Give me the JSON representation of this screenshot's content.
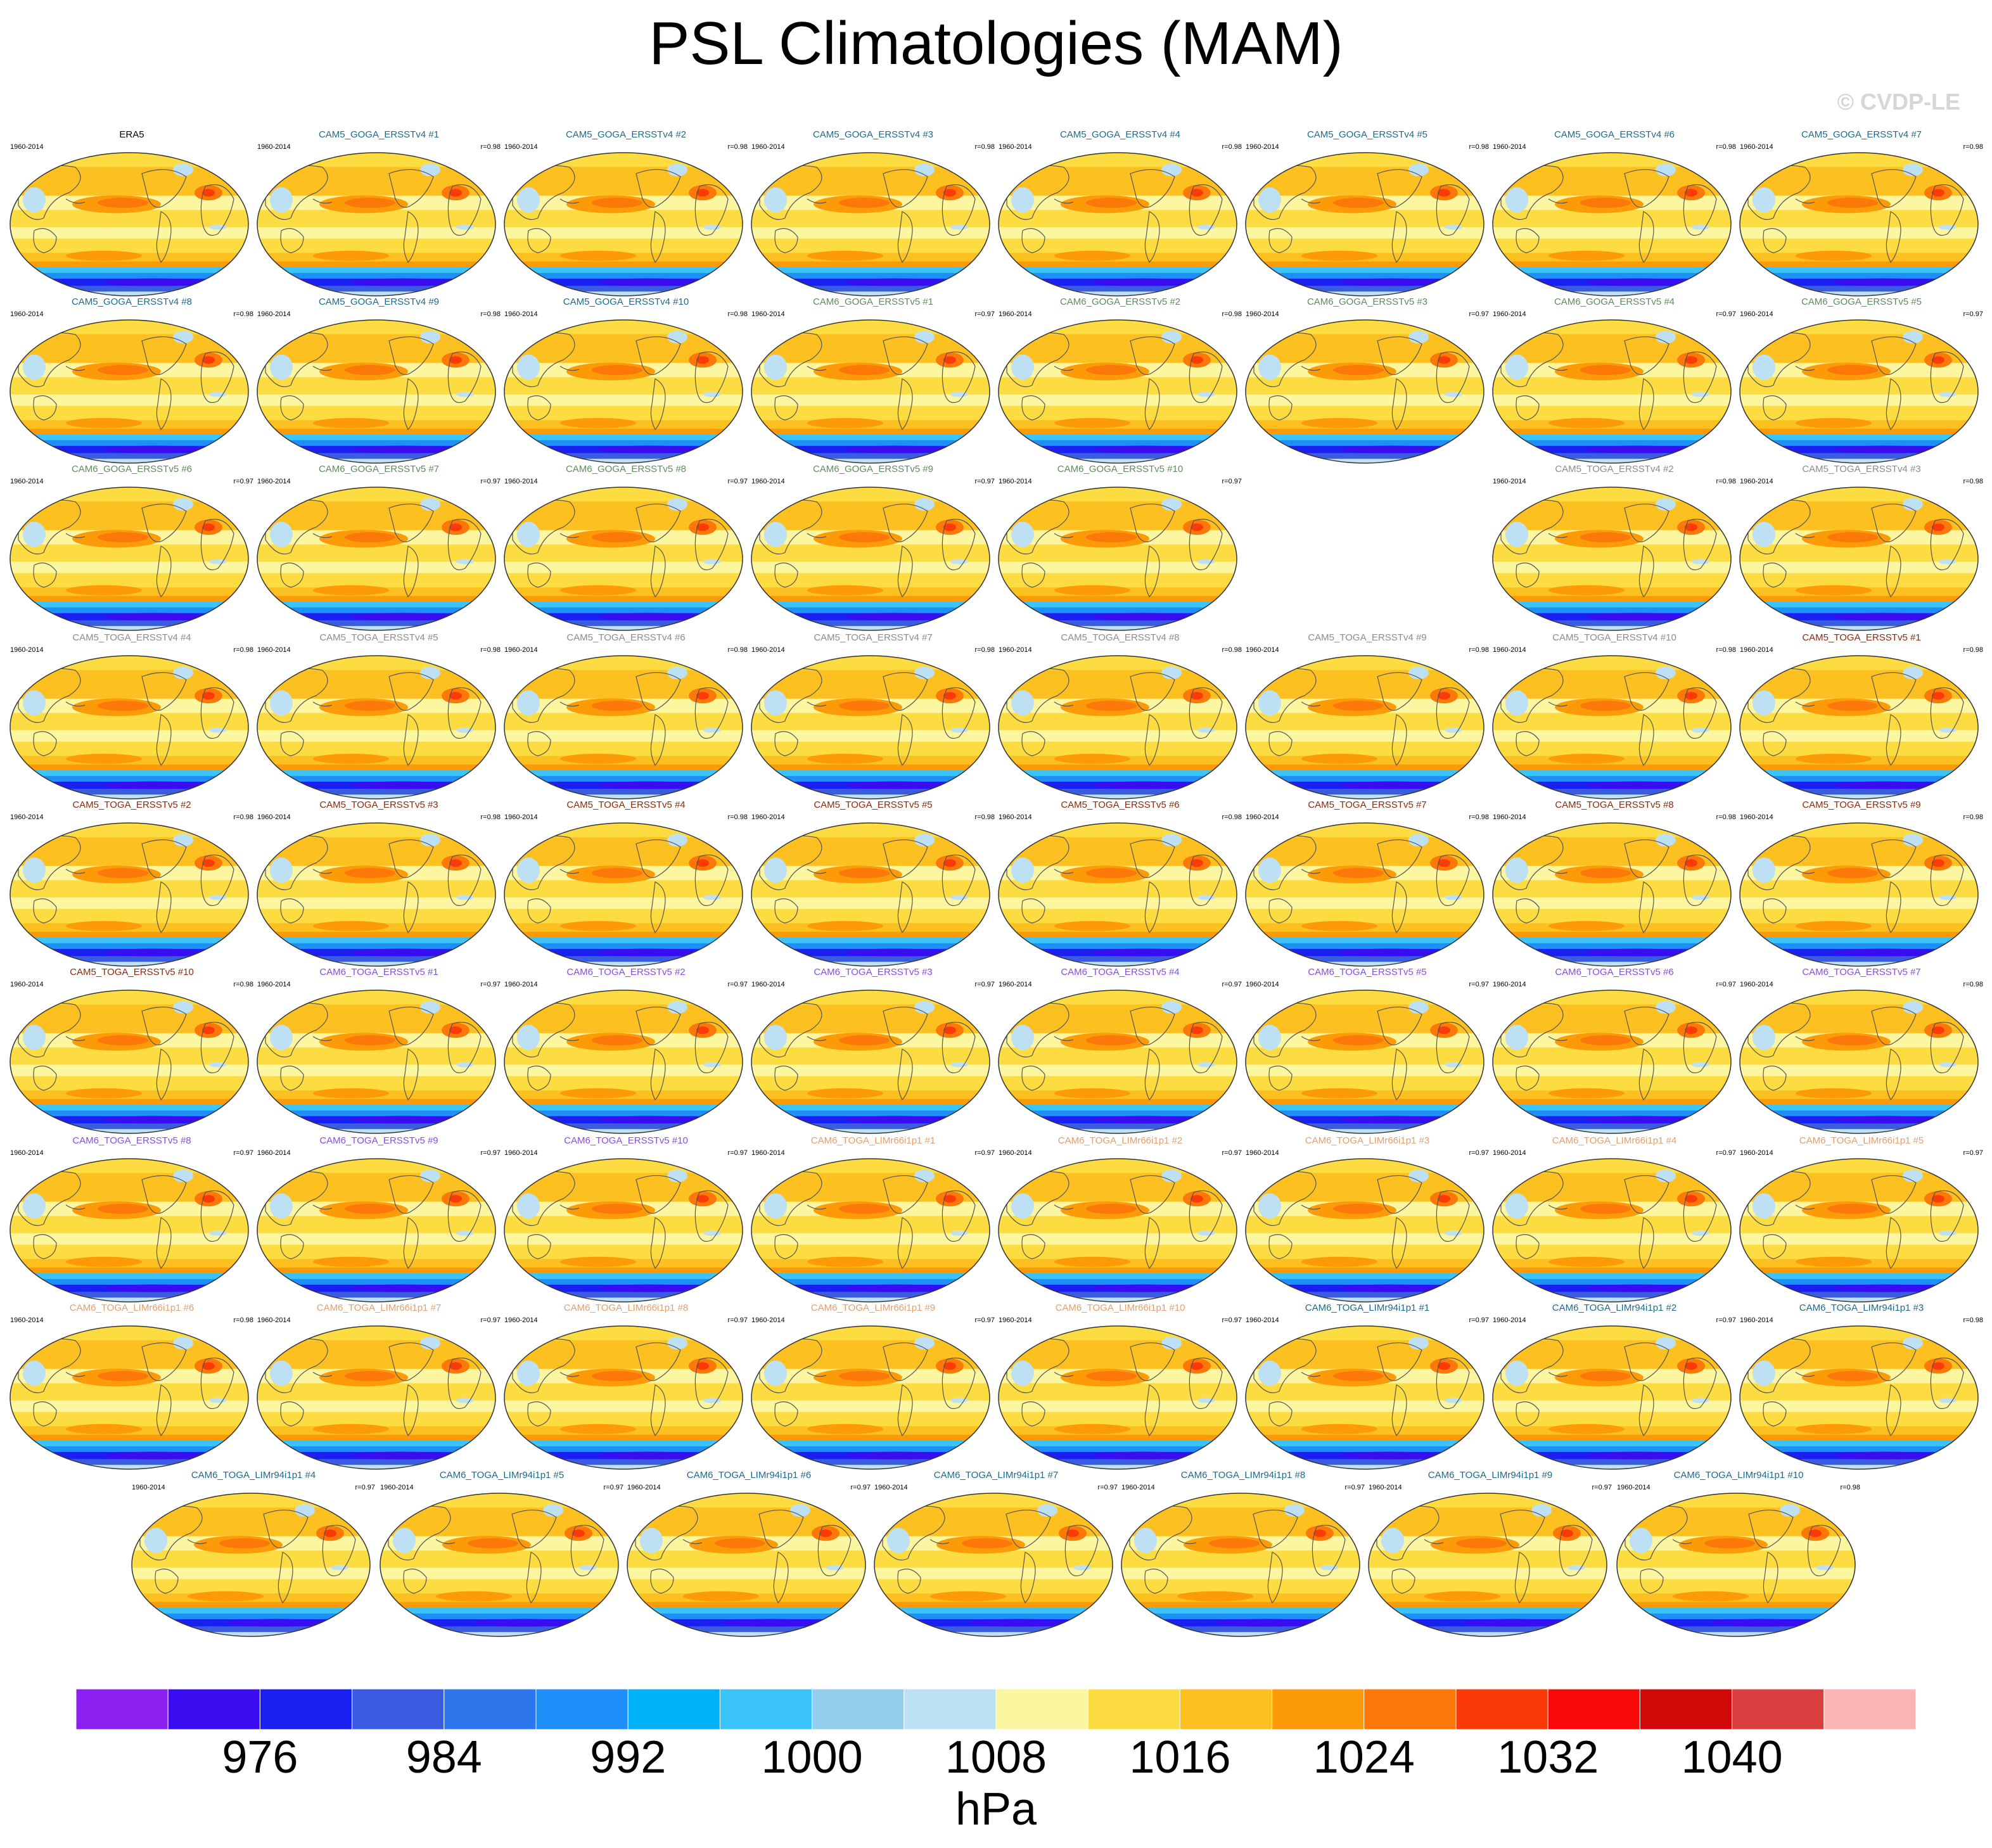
{
  "title": "PSL Climatologies (MAM)",
  "watermark": "© CVDP-LE",
  "colorbar": {
    "unit": "hPa",
    "tick_labels": [
      "976",
      "984",
      "992",
      "1000",
      "1008",
      "1016",
      "1024",
      "1032",
      "1040"
    ],
    "colors": [
      "#8B20F0",
      "#3A0CF0",
      "#1A20F0",
      "#3A5CE0",
      "#2E76EC",
      "#1E8EF8",
      "#00B0F8",
      "#3CC4F8",
      "#92CEEC",
      "#BEE0F4",
      "#FCF6A0",
      "#FCDC40",
      "#FCC020",
      "#FC9A08",
      "#FC7808",
      "#FC3A08",
      "#F80808",
      "#D00808",
      "#D83E3E",
      "#FCB4B4"
    ]
  },
  "chart_data": {
    "type": "heatmap",
    "variable": "PSL",
    "season": "MAM",
    "units": "hPa",
    "levels": [
      972,
      976,
      980,
      984,
      988,
      992,
      996,
      1000,
      1004,
      1008,
      1012,
      1016,
      1020,
      1024,
      1028,
      1032,
      1036,
      1040,
      1044
    ],
    "panels": [
      {
        "title": "ERA5",
        "years": "1960-2014",
        "r": "",
        "color": "#000000"
      },
      {
        "title": "CAM5_GOGA_ERSSTv4 #1",
        "years": "1960-2014",
        "r": "r=0.98",
        "color": "#1E6A8C"
      },
      {
        "title": "CAM5_GOGA_ERSSTv4 #2",
        "years": "1960-2014",
        "r": "r=0.98",
        "color": "#1E6A8C"
      },
      {
        "title": "CAM5_GOGA_ERSSTv4 #3",
        "years": "1960-2014",
        "r": "r=0.98",
        "color": "#1E6A8C"
      },
      {
        "title": "CAM5_GOGA_ERSSTv4 #4",
        "years": "1960-2014",
        "r": "r=0.98",
        "color": "#1E6A8C"
      },
      {
        "title": "CAM5_GOGA_ERSSTv4 #5",
        "years": "1960-2014",
        "r": "r=0.98",
        "color": "#1E6A8C"
      },
      {
        "title": "CAM5_GOGA_ERSSTv4 #6",
        "years": "1960-2014",
        "r": "r=0.98",
        "color": "#1E6A8C"
      },
      {
        "title": "CAM5_GOGA_ERSSTv4 #7",
        "years": "1960-2014",
        "r": "r=0.98",
        "color": "#1E6A8C"
      },
      {
        "title": "CAM5_GOGA_ERSSTv4 #8",
        "years": "1960-2014",
        "r": "r=0.98",
        "color": "#1E6A8C"
      },
      {
        "title": "CAM5_GOGA_ERSSTv4 #9",
        "years": "1960-2014",
        "r": "r=0.98",
        "color": "#1E6A8C"
      },
      {
        "title": "CAM5_GOGA_ERSSTv4 #10",
        "years": "1960-2014",
        "r": "r=0.98",
        "color": "#1E6A8C"
      },
      {
        "title": "CAM6_GOGA_ERSSTv5 #1",
        "years": "1960-2014",
        "r": "r=0.97",
        "color": "#5E8C5E"
      },
      {
        "title": "CAM6_GOGA_ERSSTv5 #2",
        "years": "1960-2014",
        "r": "r=0.98",
        "color": "#5E8C5E"
      },
      {
        "title": "CAM6_GOGA_ERSSTv5 #3",
        "years": "1960-2014",
        "r": "r=0.97",
        "color": "#5E8C5E"
      },
      {
        "title": "CAM6_GOGA_ERSSTv5 #4",
        "years": "1960-2014",
        "r": "r=0.97",
        "color": "#5E8C5E"
      },
      {
        "title": "CAM6_GOGA_ERSSTv5 #5",
        "years": "1960-2014",
        "r": "r=0.97",
        "color": "#5E8C5E"
      },
      {
        "title": "CAM6_GOGA_ERSSTv5 #6",
        "years": "1960-2014",
        "r": "r=0.97",
        "color": "#5E8C5E"
      },
      {
        "title": "CAM6_GOGA_ERSSTv5 #7",
        "years": "1960-2014",
        "r": "r=0.97",
        "color": "#5E8C5E"
      },
      {
        "title": "CAM6_GOGA_ERSSTv5 #8",
        "years": "1960-2014",
        "r": "r=0.97",
        "color": "#5E8C5E"
      },
      {
        "title": "CAM6_GOGA_ERSSTv5 #9",
        "years": "1960-2014",
        "r": "r=0.97",
        "color": "#5E8C5E"
      },
      {
        "title": "CAM6_GOGA_ERSSTv5 #10",
        "years": "1960-2014",
        "r": "r=0.97",
        "color": "#5E8C5E"
      },
      {
        "title": "CAM5_TOGA_ERSSTv4 #2",
        "years": "1960-2014",
        "r": "r=0.98",
        "color": "#8C8C8C"
      },
      {
        "title": "CAM5_TOGA_ERSSTv4 #3",
        "years": "1960-2014",
        "r": "r=0.98",
        "color": "#8C8C8C"
      },
      {
        "title": "CAM5_TOGA_ERSSTv4 #4",
        "years": "1960-2014",
        "r": "r=0.98",
        "color": "#8C8C8C"
      },
      {
        "title": "CAM5_TOGA_ERSSTv4 #5",
        "years": "1960-2014",
        "r": "r=0.98",
        "color": "#8C8C8C"
      },
      {
        "title": "CAM5_TOGA_ERSSTv4 #6",
        "years": "1960-2014",
        "r": "r=0.98",
        "color": "#8C8C8C"
      },
      {
        "title": "CAM5_TOGA_ERSSTv4 #7",
        "years": "1960-2014",
        "r": "r=0.98",
        "color": "#8C8C8C"
      },
      {
        "title": "CAM5_TOGA_ERSSTv4 #8",
        "years": "1960-2014",
        "r": "r=0.98",
        "color": "#8C8C8C"
      },
      {
        "title": "CAM5_TOGA_ERSSTv4 #9",
        "years": "1960-2014",
        "r": "r=0.98",
        "color": "#8C8C8C"
      },
      {
        "title": "CAM5_TOGA_ERSSTv4 #10",
        "years": "1960-2014",
        "r": "r=0.98",
        "color": "#8C8C8C"
      },
      {
        "title": "CAM5_TOGA_ERSSTv5 #1",
        "years": "1960-2014",
        "r": "r=0.98",
        "color": "#8C2A0A"
      },
      {
        "title": "CAM5_TOGA_ERSSTv5 #2",
        "years": "1960-2014",
        "r": "r=0.98",
        "color": "#8C2A0A"
      },
      {
        "title": "CAM5_TOGA_ERSSTv5 #3",
        "years": "1960-2014",
        "r": "r=0.98",
        "color": "#8C2A0A"
      },
      {
        "title": "CAM5_TOGA_ERSSTv5 #4",
        "years": "1960-2014",
        "r": "r=0.98",
        "color": "#8C2A0A"
      },
      {
        "title": "CAM5_TOGA_ERSSTv5 #5",
        "years": "1960-2014",
        "r": "r=0.98",
        "color": "#8C2A0A"
      },
      {
        "title": "CAM5_TOGA_ERSSTv5 #6",
        "years": "1960-2014",
        "r": "r=0.98",
        "color": "#8C2A0A"
      },
      {
        "title": "CAM5_TOGA_ERSSTv5 #7",
        "years": "1960-2014",
        "r": "r=0.98",
        "color": "#8C2A0A"
      },
      {
        "title": "CAM5_TOGA_ERSSTv5 #8",
        "years": "1960-2014",
        "r": "r=0.98",
        "color": "#8C2A0A"
      },
      {
        "title": "CAM5_TOGA_ERSSTv5 #9",
        "years": "1960-2014",
        "r": "r=0.98",
        "color": "#8C2A0A"
      },
      {
        "title": "CAM5_TOGA_ERSSTv5 #10",
        "years": "1960-2014",
        "r": "r=0.98",
        "color": "#8C2A0A"
      },
      {
        "title": "CAM6_TOGA_ERSSTv5 #1",
        "years": "1960-2014",
        "r": "r=0.97",
        "color": "#8A4CE6"
      },
      {
        "title": "CAM6_TOGA_ERSSTv5 #2",
        "years": "1960-2014",
        "r": "r=0.97",
        "color": "#8A4CE6"
      },
      {
        "title": "CAM6_TOGA_ERSSTv5 #3",
        "years": "1960-2014",
        "r": "r=0.97",
        "color": "#8A4CE6"
      },
      {
        "title": "CAM6_TOGA_ERSSTv5 #4",
        "years": "1960-2014",
        "r": "r=0.97",
        "color": "#8A4CE6"
      },
      {
        "title": "CAM6_TOGA_ERSSTv5 #5",
        "years": "1960-2014",
        "r": "r=0.97",
        "color": "#8A4CE6"
      },
      {
        "title": "CAM6_TOGA_ERSSTv5 #6",
        "years": "1960-2014",
        "r": "r=0.97",
        "color": "#8A4CE6"
      },
      {
        "title": "CAM6_TOGA_ERSSTv5 #7",
        "years": "1960-2014",
        "r": "r=0.98",
        "color": "#8A4CE6"
      },
      {
        "title": "CAM6_TOGA_ERSSTv5 #8",
        "years": "1960-2014",
        "r": "r=0.97",
        "color": "#8A4CE6"
      },
      {
        "title": "CAM6_TOGA_ERSSTv5 #9",
        "years": "1960-2014",
        "r": "r=0.97",
        "color": "#8A4CE6"
      },
      {
        "title": "CAM6_TOGA_ERSSTv5 #10",
        "years": "1960-2014",
        "r": "r=0.97",
        "color": "#8A4CE6"
      },
      {
        "title": "CAM6_TOGA_LIMr66i1p1 #1",
        "years": "1960-2014",
        "r": "r=0.97",
        "color": "#E0A070"
      },
      {
        "title": "CAM6_TOGA_LIMr66i1p1 #2",
        "years": "1960-2014",
        "r": "r=0.97",
        "color": "#E0A070"
      },
      {
        "title": "CAM6_TOGA_LIMr66i1p1 #3",
        "years": "1960-2014",
        "r": "r=0.97",
        "color": "#E0A070"
      },
      {
        "title": "CAM6_TOGA_LIMr66i1p1 #4",
        "years": "1960-2014",
        "r": "r=0.97",
        "color": "#E0A070"
      },
      {
        "title": "CAM6_TOGA_LIMr66i1p1 #5",
        "years": "1960-2014",
        "r": "r=0.97",
        "color": "#E0A070"
      },
      {
        "title": "CAM6_TOGA_LIMr66i1p1 #6",
        "years": "1960-2014",
        "r": "r=0.98",
        "color": "#E0A070"
      },
      {
        "title": "CAM6_TOGA_LIMr66i1p1 #7",
        "years": "1960-2014",
        "r": "r=0.97",
        "color": "#E0A070"
      },
      {
        "title": "CAM6_TOGA_LIMr66i1p1 #8",
        "years": "1960-2014",
        "r": "r=0.97",
        "color": "#E0A070"
      },
      {
        "title": "CAM6_TOGA_LIMr66i1p1 #9",
        "years": "1960-2014",
        "r": "r=0.97",
        "color": "#E0A070"
      },
      {
        "title": "CAM6_TOGA_LIMr66i1p1 #10",
        "years": "1960-2014",
        "r": "r=0.97",
        "color": "#E0A070"
      },
      {
        "title": "CAM6_TOGA_LIMr94i1p1 #1",
        "years": "1960-2014",
        "r": "r=0.97",
        "color": "#1E6A8C"
      },
      {
        "title": "CAM6_TOGA_LIMr94i1p1 #2",
        "years": "1960-2014",
        "r": "r=0.97",
        "color": "#1E6A8C"
      },
      {
        "title": "CAM6_TOGA_LIMr94i1p1 #3",
        "years": "1960-2014",
        "r": "r=0.98",
        "color": "#1E6A8C"
      },
      {
        "title": "CAM6_TOGA_LIMr94i1p1 #4",
        "years": "1960-2014",
        "r": "r=0.97",
        "color": "#1E6A8C"
      },
      {
        "title": "CAM6_TOGA_LIMr94i1p1 #5",
        "years": "1960-2014",
        "r": "r=0.97",
        "color": "#1E6A8C"
      },
      {
        "title": "CAM6_TOGA_LIMr94i1p1 #6",
        "years": "1960-2014",
        "r": "r=0.97",
        "color": "#1E6A8C"
      },
      {
        "title": "CAM6_TOGA_LIMr94i1p1 #7",
        "years": "1960-2014",
        "r": "r=0.97",
        "color": "#1E6A8C"
      },
      {
        "title": "CAM6_TOGA_LIMr94i1p1 #8",
        "years": "1960-2014",
        "r": "r=0.97",
        "color": "#1E6A8C"
      },
      {
        "title": "CAM6_TOGA_LIMr94i1p1 #9",
        "years": "1960-2014",
        "r": "r=0.97",
        "color": "#1E6A8C"
      },
      {
        "title": "CAM6_TOGA_LIMr94i1p1 #10",
        "years": "1960-2014",
        "r": "r=0.98",
        "color": "#1E6A8C"
      }
    ]
  }
}
